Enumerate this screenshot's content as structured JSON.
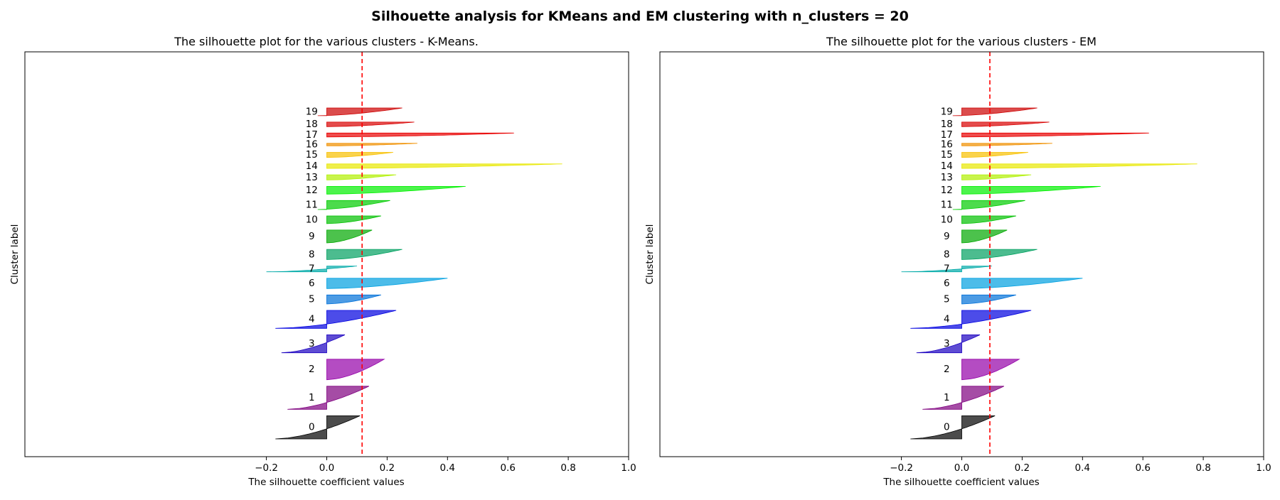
{
  "figure": {
    "title": "Silhouette analysis for KMeans and EM clustering with n_clusters = 20"
  },
  "colors": {
    "threshold_line": "#ff0000",
    "cluster_palette": [
      "#000000",
      "#7f007f",
      "#9400a8",
      "#1a00c0",
      "#0000e0",
      "#0070d8",
      "#00a0e0",
      "#00aaa8",
      "#00a060",
      "#00a800",
      "#00c000",
      "#00cc00",
      "#00f000",
      "#b0f000",
      "#e8e800",
      "#f8c000",
      "#f09000",
      "#e80000",
      "#d80000",
      "#cc0000"
    ]
  },
  "chart_data": [
    {
      "type": "area",
      "title": "The silhouette plot for the various clusters - K-Means.",
      "xlabel": "The silhouette coefficient values",
      "ylabel": "Cluster label",
      "xlim": [
        -1.0,
        1.0
      ],
      "xticks": [
        -0.2,
        0.0,
        0.2,
        0.4,
        0.6,
        0.8,
        1.0
      ],
      "xtick_labels": [
        "−0.2",
        "0.0",
        "0.2",
        "0.4",
        "0.6",
        "0.8",
        "1.0"
      ],
      "average_silhouette": 0.117,
      "grid": false,
      "clusters": [
        {
          "label": "0",
          "max": 0.11,
          "min": -0.17,
          "size": 36
        },
        {
          "label": "1",
          "max": 0.14,
          "min": -0.13,
          "size": 36
        },
        {
          "label": "2",
          "max": 0.19,
          "min": 0.0,
          "size": 32
        },
        {
          "label": "3",
          "max": 0.06,
          "min": -0.15,
          "size": 28
        },
        {
          "label": "4",
          "max": 0.23,
          "min": -0.17,
          "size": 28
        },
        {
          "label": "5",
          "max": 0.18,
          "min": 0.0,
          "size": 14
        },
        {
          "label": "6",
          "max": 0.4,
          "min": 0.0,
          "size": 16
        },
        {
          "label": "7",
          "max": 0.1,
          "min": -0.2,
          "size": 9
        },
        {
          "label": "8",
          "max": 0.25,
          "min": 0.0,
          "size": 16
        },
        {
          "label": "9",
          "max": 0.15,
          "min": 0.0,
          "size": 20
        },
        {
          "label": "10",
          "max": 0.18,
          "min": 0.0,
          "size": 12
        },
        {
          "label": "11",
          "max": 0.21,
          "min": -0.03,
          "size": 14
        },
        {
          "label": "12",
          "max": 0.46,
          "min": 0.0,
          "size": 12
        },
        {
          "label": "13",
          "max": 0.23,
          "min": 0.0,
          "size": 8
        },
        {
          "label": "14",
          "max": 0.78,
          "min": 0.0,
          "size": 7
        },
        {
          "label": "15",
          "max": 0.22,
          "min": 0.0,
          "size": 8
        },
        {
          "label": "16",
          "max": 0.3,
          "min": 0.0,
          "size": 4
        },
        {
          "label": "17",
          "max": 0.62,
          "min": 0.0,
          "size": 6
        },
        {
          "label": "18",
          "max": 0.29,
          "min": 0.0,
          "size": 7
        },
        {
          "label": "19",
          "max": 0.25,
          "min": -0.03,
          "size": 12
        }
      ]
    },
    {
      "type": "area",
      "title": "The silhouette plot for the various clusters - EM",
      "xlabel": "The silhouette coefficient values",
      "ylabel": "Cluster label",
      "xlim": [
        -1.0,
        1.0
      ],
      "xticks": [
        -0.2,
        0.0,
        0.2,
        0.4,
        0.6,
        0.8,
        1.0
      ],
      "xtick_labels": [
        "−0.2",
        "0.0",
        "0.2",
        "0.4",
        "0.6",
        "0.8",
        "1.0"
      ],
      "average_silhouette": 0.093,
      "grid": false,
      "clusters": [
        {
          "label": "0",
          "max": 0.11,
          "min": -0.17,
          "size": 36
        },
        {
          "label": "1",
          "max": 0.14,
          "min": -0.13,
          "size": 36
        },
        {
          "label": "2",
          "max": 0.19,
          "min": 0.0,
          "size": 32
        },
        {
          "label": "3",
          "max": 0.06,
          "min": -0.15,
          "size": 28
        },
        {
          "label": "4",
          "max": 0.23,
          "min": -0.17,
          "size": 28
        },
        {
          "label": "5",
          "max": 0.18,
          "min": 0.0,
          "size": 14
        },
        {
          "label": "6",
          "max": 0.4,
          "min": 0.0,
          "size": 16
        },
        {
          "label": "7",
          "max": 0.1,
          "min": -0.2,
          "size": 9
        },
        {
          "label": "8",
          "max": 0.25,
          "min": 0.0,
          "size": 16
        },
        {
          "label": "9",
          "max": 0.15,
          "min": 0.0,
          "size": 20
        },
        {
          "label": "10",
          "max": 0.18,
          "min": 0.0,
          "size": 12
        },
        {
          "label": "11",
          "max": 0.21,
          "min": -0.03,
          "size": 14
        },
        {
          "label": "12",
          "max": 0.46,
          "min": 0.0,
          "size": 12
        },
        {
          "label": "13",
          "max": 0.23,
          "min": 0.0,
          "size": 8
        },
        {
          "label": "14",
          "max": 0.78,
          "min": 0.0,
          "size": 7
        },
        {
          "label": "15",
          "max": 0.22,
          "min": 0.0,
          "size": 8
        },
        {
          "label": "16",
          "max": 0.3,
          "min": 0.0,
          "size": 4
        },
        {
          "label": "17",
          "max": 0.62,
          "min": 0.0,
          "size": 6
        },
        {
          "label": "18",
          "max": 0.29,
          "min": 0.0,
          "size": 7
        },
        {
          "label": "19",
          "max": 0.25,
          "min": -0.03,
          "size": 12
        }
      ]
    }
  ]
}
